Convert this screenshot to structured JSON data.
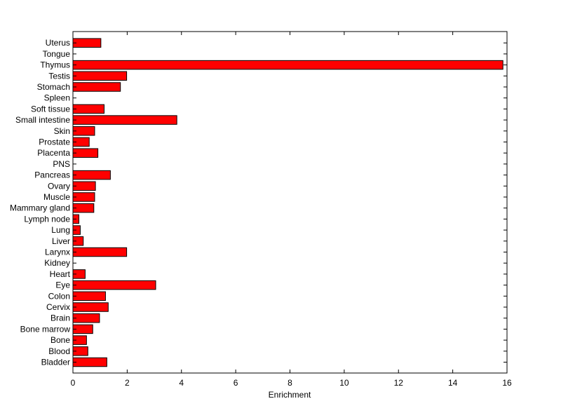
{
  "chart_data": {
    "type": "bar",
    "orientation": "horizontal",
    "title": "",
    "xlabel": "Enrichment",
    "ylabel": "",
    "xlim": [
      0,
      16
    ],
    "xticks": [
      0,
      2,
      4,
      6,
      8,
      10,
      12,
      14,
      16
    ],
    "grid": false,
    "bar_color": "#ff0000",
    "edge_color": "#000000",
    "categories": [
      "Bladder",
      "Blood",
      "Bone",
      "Bone marrow",
      "Brain",
      "Cervix",
      "Colon",
      "Eye",
      "Heart",
      "Kidney",
      "Larynx",
      "Liver",
      "Lung",
      "Lymph node",
      "Mammary gland",
      "Muscle",
      "Ovary",
      "Pancreas",
      "PNS",
      "Placenta",
      "Prostate",
      "Skin",
      "Small intestine",
      "Soft tissue",
      "Spleen",
      "Stomach",
      "Testis",
      "Thymus",
      "Tongue",
      "Uterus"
    ],
    "values": [
      1.25,
      0.55,
      0.5,
      0.73,
      0.98,
      1.3,
      1.2,
      3.05,
      0.45,
      0,
      1.98,
      0.38,
      0.27,
      0.22,
      0.77,
      0.8,
      0.83,
      1.38,
      0,
      0.92,
      0.6,
      0.8,
      3.83,
      1.15,
      0,
      1.75,
      1.98,
      15.85,
      0,
      1.03
    ]
  }
}
